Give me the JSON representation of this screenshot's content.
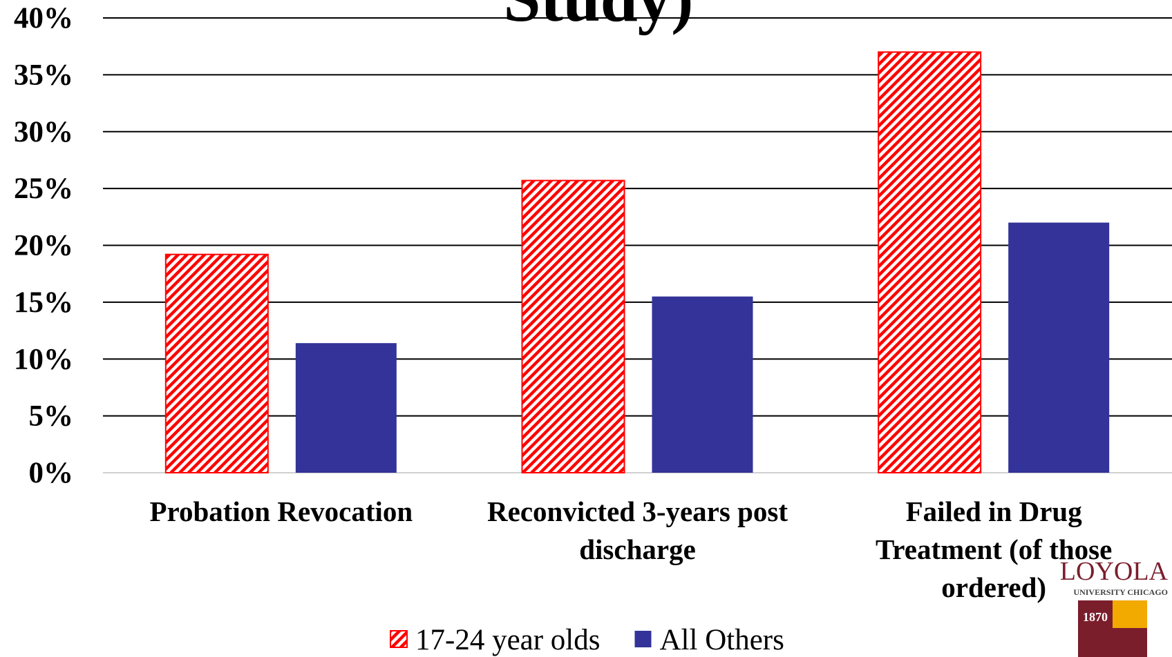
{
  "chart_data": {
    "type": "bar",
    "title": "Study)",
    "categories": [
      "Probation Revocation",
      "Reconvicted 3-years post discharge",
      "Failed in Drug Treatment (of those ordered)"
    ],
    "series": [
      {
        "name": "17-24 year olds",
        "color": "#ff0000",
        "pattern": "hatch",
        "values": [
          19.2,
          25.7,
          37.0
        ]
      },
      {
        "name": "All Others",
        "color": "#333399",
        "values": [
          11.4,
          15.5,
          22.0
        ]
      }
    ],
    "ylim": [
      0,
      40
    ],
    "yticks": [
      {
        "value": 0,
        "label": "0%"
      },
      {
        "value": 5,
        "label": "5%"
      },
      {
        "value": 10,
        "label": "10%"
      },
      {
        "value": 15,
        "label": "15%"
      },
      {
        "value": 20,
        "label": "20%"
      },
      {
        "value": 25,
        "label": "25%"
      },
      {
        "value": 30,
        "label": "30%"
      },
      {
        "value": 35,
        "label": "35%"
      },
      {
        "value": 40,
        "label": "40%"
      }
    ],
    "grid": true,
    "legend": "bottom"
  },
  "logo": {
    "name": "LOYOLA",
    "subtitle": "UNIVERSITY CHICAGO",
    "year": "1870"
  }
}
